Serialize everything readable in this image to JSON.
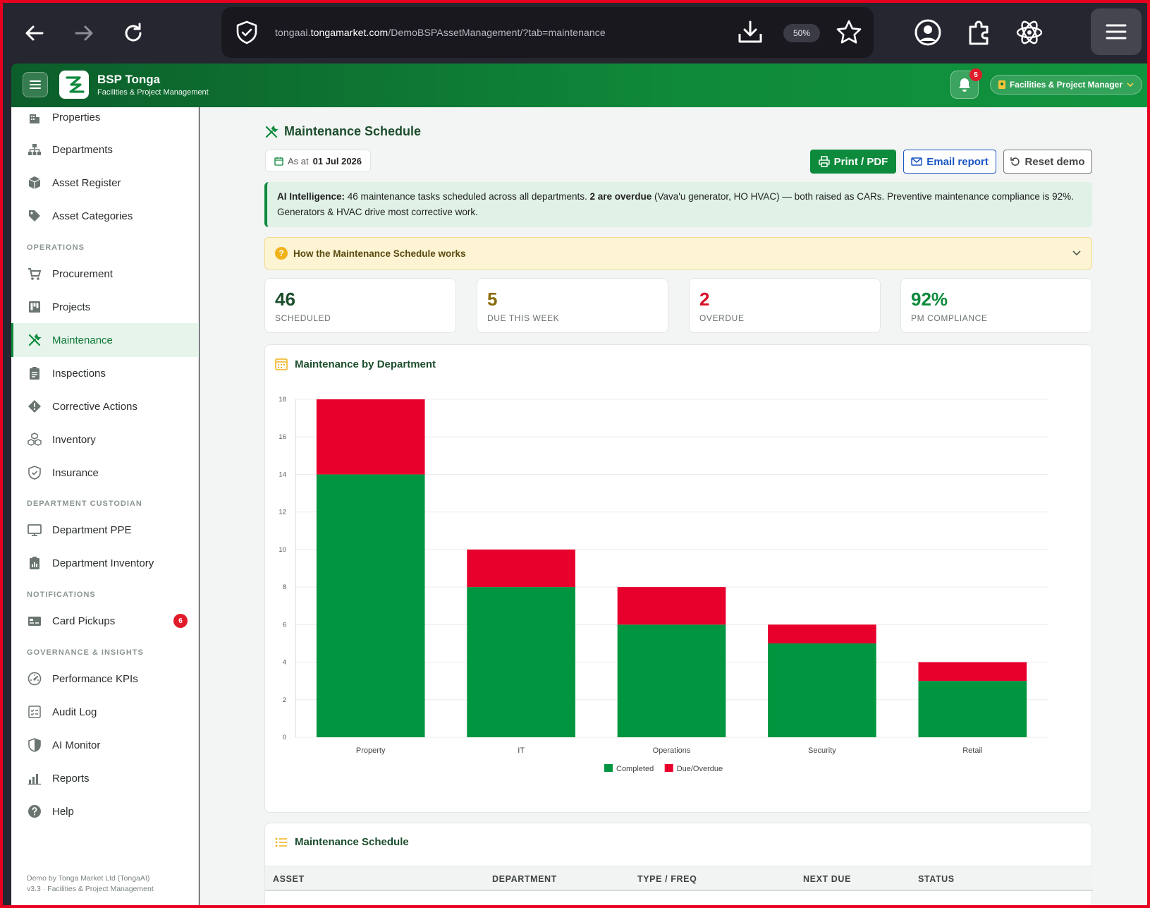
{
  "browser": {
    "url_prefix": "tongaai.",
    "url_domain": "tongamarket.com",
    "url_path": "/DemoBSPAssetManagement/?tab=maintenance",
    "zoom": "50%"
  },
  "header": {
    "brand_title": "BSP Tonga",
    "brand_subtitle": "Facilities & Project Management",
    "notification_count": "5",
    "role_label": "Facilities & Project Manager"
  },
  "sidebar": {
    "items_top": [
      {
        "label": "Properties",
        "icon": "building-icon"
      },
      {
        "label": "Departments",
        "icon": "sitemap-icon"
      },
      {
        "label": "Asset Register",
        "icon": "box-icon"
      },
      {
        "label": "Asset Categories",
        "icon": "tag-icon"
      }
    ],
    "sec_operations": "OPERATIONS",
    "items_ops": [
      {
        "label": "Procurement",
        "icon": "cart-icon"
      },
      {
        "label": "Projects",
        "icon": "kanban-icon"
      },
      {
        "label": "Maintenance",
        "icon": "tools-icon"
      },
      {
        "label": "Inspections",
        "icon": "clipboard-icon"
      },
      {
        "label": "Corrective Actions",
        "icon": "warning-diamond-icon"
      },
      {
        "label": "Inventory",
        "icon": "boxes-icon"
      },
      {
        "label": "Insurance",
        "icon": "shield-check-icon"
      }
    ],
    "sec_custodian": "DEPARTMENT CUSTODIAN",
    "items_cust": [
      {
        "label": "Department PPE",
        "icon": "monitor-icon"
      },
      {
        "label": "Department Inventory",
        "icon": "clipboard-chart-icon"
      }
    ],
    "sec_notifications": "NOTIFICATIONS",
    "items_notif": [
      {
        "label": "Card Pickups",
        "icon": "card-icon",
        "badge": "6"
      }
    ],
    "sec_governance": "GOVERNANCE & INSIGHTS",
    "items_gov": [
      {
        "label": "Performance KPIs",
        "icon": "gauge-icon"
      },
      {
        "label": "Audit Log",
        "icon": "checklist-icon"
      },
      {
        "label": "AI Monitor",
        "icon": "shield-half-icon"
      },
      {
        "label": "Reports",
        "icon": "bar-chart-icon"
      },
      {
        "label": "Help",
        "icon": "help-icon"
      }
    ],
    "footer_line1": "Demo by Tonga Market Ltd (TongaAI)",
    "footer_line2": "v3.3 · Facilities & Project Management"
  },
  "main": {
    "title": "Maintenance Schedule",
    "as_at_label": "As at",
    "as_at_date": "01 Jul 2026",
    "print_label": "Print / PDF",
    "email_label": "Email report",
    "reset_label": "Reset demo",
    "ai_label": "AI Intelligence:",
    "ai_text1": " 46 maintenance tasks scheduled across all departments. ",
    "ai_bold": "2 are overdue",
    "ai_text2": " (Vava'u generator, HO HVAC) — both raised as CARs. Preventive maintenance compliance is 92%. Generators & HVAC drive most corrective work.",
    "howto_label": "How the Maintenance Schedule works",
    "stats": [
      {
        "value": "46",
        "label": "SCHEDULED",
        "color": "#1b4d2c"
      },
      {
        "value": "5",
        "label": "DUE THIS WEEK",
        "color": "#8a6d0a"
      },
      {
        "value": "2",
        "label": "OVERDUE",
        "color": "#d8102a"
      },
      {
        "value": "92%",
        "label": "PM COMPLIANCE",
        "color": "#0d8a3c"
      }
    ],
    "chart_title": "Maintenance by Department",
    "table_title": "Maintenance Schedule",
    "table_headers": [
      "ASSET",
      "DEPARTMENT",
      "TYPE / FREQ",
      "NEXT DUE",
      "STATUS"
    ]
  },
  "chart_data": {
    "type": "bar",
    "stacked": true,
    "categories": [
      "Property",
      "IT",
      "Operations",
      "Security",
      "Retail"
    ],
    "series": [
      {
        "name": "Completed",
        "values": [
          14,
          8,
          6,
          5,
          3
        ],
        "color": "#009640"
      },
      {
        "name": "Due/Overdue",
        "values": [
          4,
          2,
          2,
          1,
          1
        ],
        "color": "#e8002d"
      }
    ],
    "ylim": [
      0,
      18
    ],
    "yticks": [
      0,
      2,
      4,
      6,
      8,
      10,
      12,
      14,
      16,
      18
    ],
    "grid": true,
    "legend": "bottom"
  }
}
